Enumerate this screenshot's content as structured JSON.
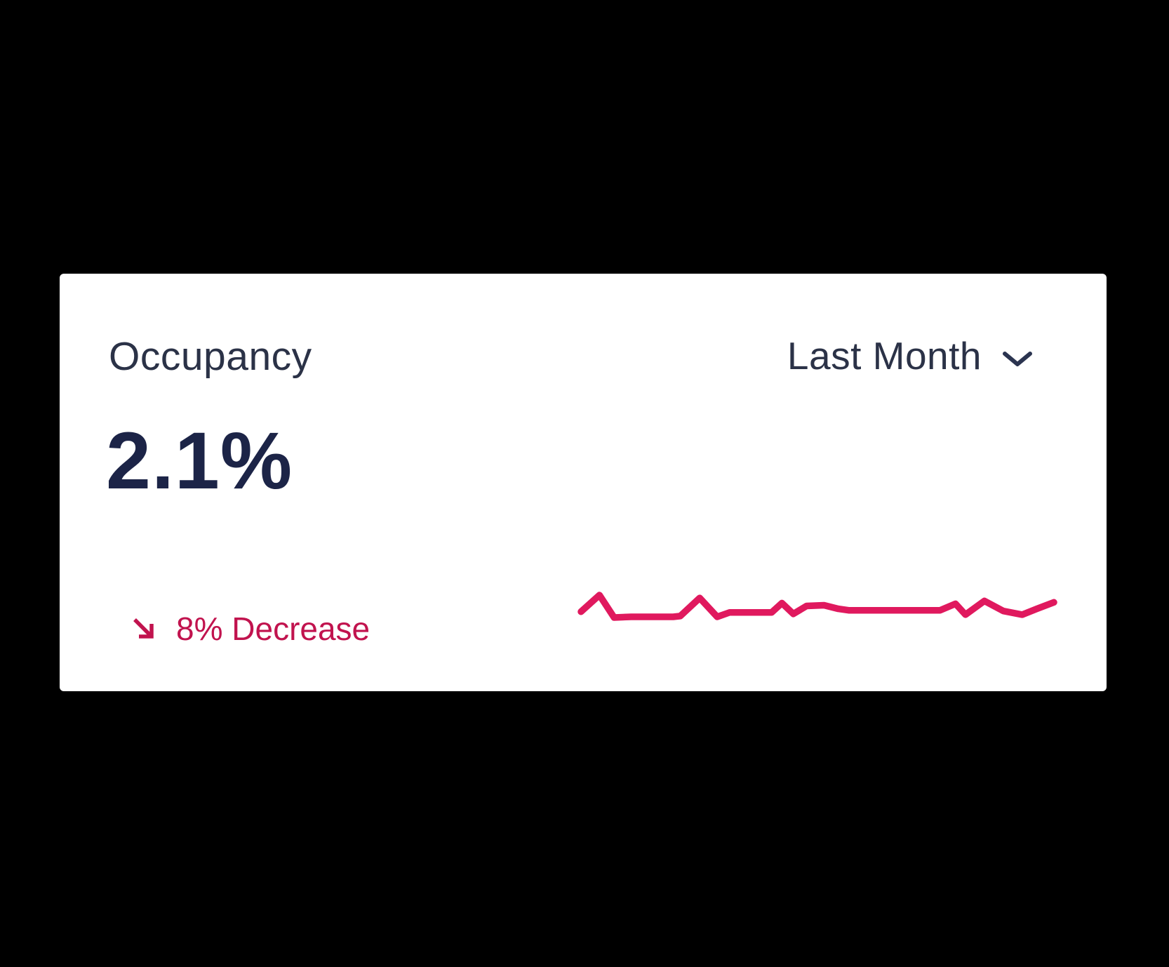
{
  "window": {
    "background": "#000000"
  },
  "card": {
    "title": "Occupancy",
    "period_selector": {
      "label": "Last Month"
    },
    "metric": {
      "value": "2.1%"
    },
    "change": {
      "label": "8% Decrease",
      "direction": "decrease"
    }
  },
  "colors": {
    "card_background": "#ffffff",
    "title_text": "#2b3247",
    "metric_text": "#1c2447",
    "change_text": "#c1134e",
    "sparkline": "#e0195e",
    "chevron": "#2b3450"
  },
  "chart_data": {
    "type": "line",
    "title": "Occupancy trend sparkline (Last Month)",
    "xlabel": "",
    "ylabel": "",
    "legend": "none",
    "grid": false,
    "axes_visible": false,
    "line_color": "#e0195e",
    "x_percent": [
      0,
      3.9,
      7.0,
      10.6,
      19.5,
      21.0,
      25.1,
      28.8,
      31.4,
      40.3,
      42.5,
      44.9,
      47.7,
      51.4,
      54.4,
      56.6,
      75.9,
      79.2,
      81.3,
      85.3,
      89.3,
      93.3,
      96.4,
      100
    ],
    "values": [
      16,
      39,
      8,
      9,
      9,
      10,
      35,
      9,
      15,
      15,
      28,
      13,
      24,
      25,
      20,
      18,
      18,
      27,
      12,
      31,
      17,
      12,
      20,
      29
    ],
    "ylim": [
      0,
      45
    ]
  }
}
